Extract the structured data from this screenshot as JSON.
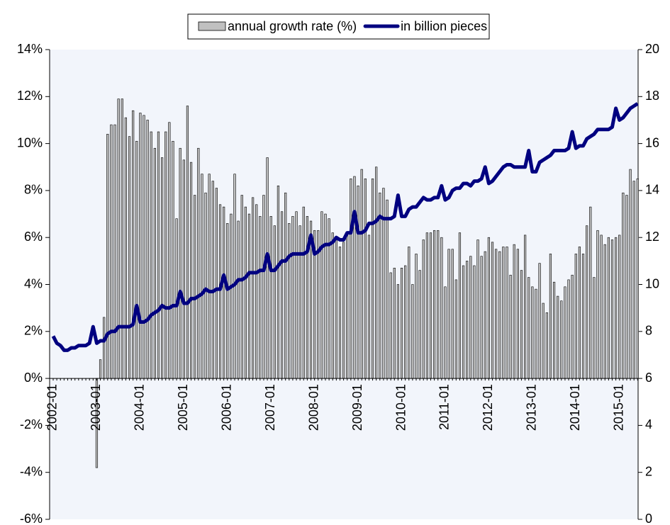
{
  "chart_data": {
    "type": "bar",
    "categories": [
      "2002-01",
      null,
      null,
      null,
      null,
      null,
      null,
      null,
      null,
      null,
      null,
      null,
      "2003-01",
      null,
      null,
      null,
      null,
      null,
      null,
      null,
      null,
      null,
      null,
      null,
      "2004-01",
      null,
      null,
      null,
      null,
      null,
      null,
      null,
      null,
      null,
      null,
      null,
      "2005-01",
      null,
      null,
      null,
      null,
      null,
      null,
      null,
      null,
      null,
      null,
      null,
      "2006-01",
      null,
      null,
      null,
      null,
      null,
      null,
      null,
      null,
      null,
      null,
      null,
      "2007-01",
      null,
      null,
      null,
      null,
      null,
      null,
      null,
      null,
      null,
      null,
      null,
      "2008-01",
      null,
      null,
      null,
      null,
      null,
      null,
      null,
      null,
      null,
      null,
      null,
      "2009-01",
      null,
      null,
      null,
      null,
      null,
      null,
      null,
      null,
      null,
      null,
      null,
      "2010-01",
      null,
      null,
      null,
      null,
      null,
      null,
      null,
      null,
      null,
      null,
      null,
      "2011-01",
      null,
      null,
      null,
      null,
      null,
      null,
      null,
      null,
      null,
      null,
      null,
      "2012-01",
      null,
      null,
      null,
      null,
      null,
      null,
      null,
      null,
      null,
      null,
      null,
      "2013-01",
      null,
      null,
      null,
      null,
      null,
      null,
      null,
      null,
      null,
      null,
      null,
      "2014-01",
      null,
      null,
      null,
      null,
      null,
      null,
      null,
      null,
      null,
      null,
      null,
      "2015-01",
      null,
      null,
      null,
      null,
      null
    ],
    "series": [
      {
        "name": "annual growth rate (%)",
        "type": "bar",
        "color": "#c0c0c0",
        "values": [
          null,
          null,
          null,
          null,
          null,
          null,
          null,
          null,
          null,
          null,
          null,
          null,
          -3.8,
          0.8,
          2.6,
          10.4,
          10.8,
          10.8,
          11.9,
          11.9,
          11.1,
          10.3,
          11.4,
          10.1,
          11.3,
          11.2,
          11.0,
          10.5,
          9.8,
          10.5,
          9.4,
          10.5,
          10.9,
          10.1,
          6.8,
          9.8,
          9.3,
          11.6,
          9.2,
          7.8,
          9.8,
          8.7,
          7.9,
          8.7,
          8.4,
          8.1,
          7.4,
          7.3,
          6.6,
          7.0,
          8.7,
          6.7,
          7.8,
          7.3,
          7.0,
          7.7,
          7.4,
          6.9,
          7.8,
          9.4,
          6.9,
          6.5,
          8.2,
          7.1,
          7.9,
          6.6,
          6.9,
          7.1,
          6.5,
          7.3,
          6.9,
          6.7,
          6.3,
          6.3,
          7.1,
          7.0,
          6.8,
          6.2,
          5.9,
          5.6,
          5.8,
          6.1,
          8.5,
          8.6,
          8.2,
          8.9,
          8.5,
          6.1,
          8.5,
          9.0,
          7.9,
          8.1,
          7.6,
          4.5,
          4.7,
          4.0,
          4.7,
          4.8,
          5.6,
          4.0,
          5.3,
          4.6,
          5.9,
          6.2,
          6.2,
          6.3,
          6.3,
          6.0,
          3.9,
          5.5,
          5.5,
          4.2,
          6.2,
          4.8,
          5.0,
          5.2,
          4.8,
          5.9,
          5.2,
          5.4,
          6.0,
          5.8,
          5.5,
          5.4,
          5.6,
          5.6,
          4.4,
          5.7,
          5.5,
          4.6,
          6.1,
          4.3,
          3.9,
          3.8,
          4.9,
          3.2,
          2.8,
          5.3,
          4.1,
          3.5,
          3.3,
          3.9,
          4.2,
          4.4,
          5.3,
          5.6,
          5.3,
          6.5,
          7.3,
          4.3,
          6.3,
          6.1,
          5.7,
          6.0,
          5.9,
          6.0,
          6.1,
          7.9,
          7.8,
          8.9,
          8.4,
          8.5
        ]
      },
      {
        "name": "in billion pieces",
        "type": "line",
        "axis": "y2",
        "color": "#000080",
        "values": [
          7.8,
          7.5,
          7.4,
          7.2,
          7.2,
          7.3,
          7.3,
          7.4,
          7.4,
          7.4,
          7.5,
          8.2,
          7.5,
          7.6,
          7.6,
          7.9,
          8.0,
          8.0,
          8.2,
          8.2,
          8.2,
          8.2,
          8.3,
          9.1,
          8.4,
          8.4,
          8.5,
          8.7,
          8.8,
          8.9,
          9.1,
          9.0,
          9.0,
          9.1,
          9.1,
          9.7,
          9.2,
          9.2,
          9.4,
          9.4,
          9.5,
          9.6,
          9.8,
          9.7,
          9.7,
          9.8,
          9.8,
          10.4,
          9.8,
          9.9,
          10.0,
          10.2,
          10.2,
          10.3,
          10.5,
          10.5,
          10.5,
          10.6,
          10.6,
          11.3,
          10.6,
          10.6,
          10.8,
          11.0,
          11.0,
          11.2,
          11.3,
          11.3,
          11.3,
          11.3,
          11.4,
          12.1,
          11.3,
          11.4,
          11.6,
          11.7,
          11.7,
          11.8,
          12.0,
          11.9,
          11.9,
          12.2,
          12.2,
          13.1,
          12.2,
          12.2,
          12.3,
          12.6,
          12.6,
          12.7,
          12.9,
          12.8,
          12.8,
          12.8,
          12.9,
          13.8,
          12.9,
          12.9,
          13.2,
          13.3,
          13.3,
          13.5,
          13.7,
          13.6,
          13.6,
          13.7,
          13.7,
          14.2,
          13.6,
          13.7,
          14.0,
          14.1,
          14.1,
          14.3,
          14.3,
          14.2,
          14.4,
          14.4,
          14.5,
          15.0,
          14.3,
          14.4,
          14.6,
          14.8,
          15.0,
          15.1,
          15.1,
          15.0,
          15.0,
          15.0,
          15.0,
          15.7,
          14.8,
          14.8,
          15.2,
          15.3,
          15.4,
          15.5,
          15.7,
          15.7,
          15.7,
          15.7,
          15.8,
          16.5,
          15.8,
          15.9,
          15.9,
          16.2,
          16.3,
          16.4,
          16.6,
          16.6,
          16.6,
          16.6,
          16.7,
          17.5,
          17.0,
          17.1,
          17.3,
          17.5,
          17.6,
          17.7
        ]
      }
    ],
    "ylim": [
      -6,
      14
    ],
    "yticks": [
      {
        "value": -6,
        "label": "-6%"
      },
      {
        "value": -4,
        "label": "-4%"
      },
      {
        "value": -2,
        "label": "-2%"
      },
      {
        "value": 0,
        "label": "0%"
      },
      {
        "value": 2,
        "label": "2%"
      },
      {
        "value": 4,
        "label": "4%"
      },
      {
        "value": 6,
        "label": "6%"
      },
      {
        "value": 8,
        "label": "8%"
      },
      {
        "value": 10,
        "label": "10%"
      },
      {
        "value": 12,
        "label": "12%"
      },
      {
        "value": 14,
        "label": "14%"
      }
    ],
    "y2lim": [
      0,
      20
    ],
    "y2ticks": [
      0,
      2,
      4,
      6,
      8,
      10,
      12,
      14,
      16,
      18,
      20
    ],
    "legend": "top"
  }
}
